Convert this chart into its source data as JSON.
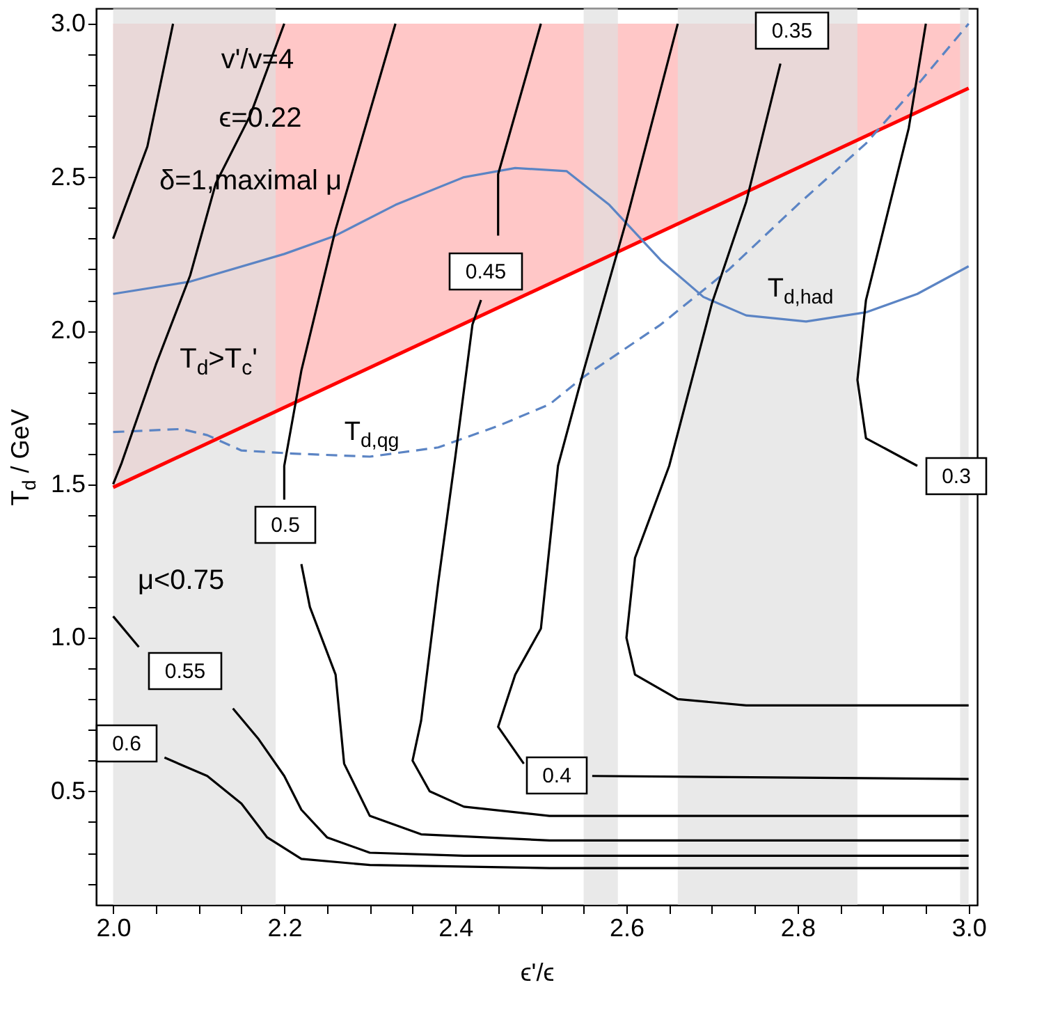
{
  "chart_data": {
    "type": "line",
    "xlabel": "ϵ'/ϵ",
    "ylabel": "T$_{d}$ / GeV",
    "xlim": [
      1.98,
      3.01
    ],
    "ylim": [
      0.13,
      3.05
    ],
    "xticks": [
      {
        "value": 2,
        "label": "2.0"
      },
      {
        "value": 2.05,
        "label": null
      },
      {
        "value": 2.1,
        "label": null
      },
      {
        "value": 2.15,
        "label": null
      },
      {
        "value": 2.2,
        "label": "2.2"
      },
      {
        "value": 2.25,
        "label": null
      },
      {
        "value": 2.3,
        "label": null
      },
      {
        "value": 2.35,
        "label": null
      },
      {
        "value": 2.4,
        "label": "2.4"
      },
      {
        "value": 2.45,
        "label": null
      },
      {
        "value": 2.5,
        "label": null
      },
      {
        "value": 2.55,
        "label": null
      },
      {
        "value": 2.6,
        "label": "2.6"
      },
      {
        "value": 2.65,
        "label": null
      },
      {
        "value": 2.7,
        "label": null
      },
      {
        "value": 2.75,
        "label": null
      },
      {
        "value": 2.8,
        "label": "2.8"
      },
      {
        "value": 2.85,
        "label": null
      },
      {
        "value": 2.9,
        "label": null
      },
      {
        "value": 2.95,
        "label": null
      },
      {
        "value": 3,
        "label": "3.0"
      }
    ],
    "yticks": [
      {
        "value": 0.2,
        "label": null
      },
      {
        "value": 0.3,
        "label": null
      },
      {
        "value": 0.4,
        "label": null
      },
      {
        "value": 0.5,
        "label": "0.5"
      },
      {
        "value": 0.6,
        "label": null
      },
      {
        "value": 0.7,
        "label": null
      },
      {
        "value": 0.8,
        "label": null
      },
      {
        "value": 0.9,
        "label": null
      },
      {
        "value": 1,
        "label": "1.0"
      },
      {
        "value": 1.1,
        "label": null
      },
      {
        "value": 1.2,
        "label": null
      },
      {
        "value": 1.3,
        "label": null
      },
      {
        "value": 1.4,
        "label": null
      },
      {
        "value": 1.5,
        "label": "1.5"
      },
      {
        "value": 1.6,
        "label": null
      },
      {
        "value": 1.7,
        "label": null
      },
      {
        "value": 1.8,
        "label": null
      },
      {
        "value": 1.9,
        "label": null
      },
      {
        "value": 2,
        "label": "2.0"
      },
      {
        "value": 2.1,
        "label": null
      },
      {
        "value": 2.2,
        "label": null
      },
      {
        "value": 2.3,
        "label": null
      },
      {
        "value": 2.4,
        "label": null
      },
      {
        "value": 2.5,
        "label": "2.5"
      },
      {
        "value": 2.6,
        "label": null
      },
      {
        "value": 2.7,
        "label": null
      },
      {
        "value": 2.8,
        "label": null
      },
      {
        "value": 2.9,
        "label": null
      },
      {
        "value": 3,
        "label": "3.0"
      }
    ],
    "bands": [
      {
        "axis": "x",
        "from": 2.0,
        "to": 2.19,
        "color": "#e0e0e0"
      },
      {
        "axis": "x",
        "from": 2.55,
        "to": 2.59,
        "color": "#e0e0e0"
      },
      {
        "axis": "x",
        "from": 2.66,
        "to": 2.87,
        "color": "#e0e0e0"
      },
      {
        "axis": "x",
        "from": 2.99,
        "to": 3.0,
        "color": "#e0e0e0"
      }
    ],
    "series": [
      {
        "color": "#ff0000",
        "x": [
          2.0,
          3.0
        ],
        "values": [
          1.49,
          2.79
        ],
        "lower": [
          1.49,
          2.79
        ],
        "upper": [
          3.0,
          3.0
        ]
      },
      {
        "color": "#5b84c4",
        "line_style": "solid",
        "x": [
          2.0,
          2.09,
          2.2,
          2.26,
          2.33,
          2.41,
          2.47,
          2.53,
          2.58,
          2.64,
          2.69,
          2.74,
          2.81,
          2.88,
          2.94,
          3.0
        ],
        "values": [
          2.12,
          2.16,
          2.25,
          2.31,
          2.41,
          2.5,
          2.53,
          2.52,
          2.41,
          2.23,
          2.11,
          2.05,
          2.03,
          2.06,
          2.12,
          2.21
        ]
      },
      {
        "color": "#5b84c4",
        "line_style": "dashed",
        "x": [
          2.0,
          2.08,
          2.11,
          2.15,
          2.21,
          2.3,
          2.38,
          2.45,
          2.51,
          2.55,
          2.64,
          2.72,
          2.8,
          2.88,
          2.94,
          3.0
        ],
        "values": [
          1.67,
          1.68,
          1.66,
          1.61,
          1.6,
          1.59,
          1.62,
          1.69,
          1.76,
          1.85,
          2.02,
          2.2,
          2.41,
          2.61,
          2.8,
          3.0
        ]
      },
      {
        "color": "#000000",
        "x": [
          2.07,
          2.04,
          2.0
        ],
        "values": [
          3.0,
          2.6,
          2.3
        ]
      },
      {
        "color": "#000000",
        "x": [
          2.2,
          2.16,
          2.12,
          2.09,
          2.05,
          2.01,
          2.0
        ],
        "values": [
          3.0,
          2.7,
          2.48,
          2.18,
          1.89,
          1.57,
          1.5
        ]
      },
      {
        "color": "#000000",
        "x": [
          2.33,
          2.26,
          2.22,
          2.2,
          2.2
        ],
        "values": [
          3.0,
          2.33,
          1.87,
          1.56,
          1.45
        ]
      },
      {
        "color": "#000000",
        "x": [
          2.22,
          2.23,
          2.26,
          2.27,
          2.3,
          2.36,
          2.51,
          3.0
        ],
        "values": [
          1.24,
          1.1,
          0.88,
          0.59,
          0.42,
          0.36,
          0.34,
          0.34
        ]
      },
      {
        "color": "#000000",
        "x": [
          2.5,
          2.45,
          2.45
        ],
        "values": [
          3.0,
          2.51,
          2.31
        ]
      },
      {
        "color": "#000000",
        "x": [
          2.43,
          2.42,
          2.4,
          2.38,
          2.36,
          2.35,
          2.37,
          2.41,
          2.51,
          3.0
        ],
        "values": [
          2.1,
          2.02,
          1.59,
          1.18,
          0.73,
          0.6,
          0.5,
          0.45,
          0.42,
          0.42
        ]
      },
      {
        "color": "#000000",
        "x": [
          2.66,
          2.6,
          2.55,
          2.52,
          2.5,
          2.47,
          2.45,
          2.48
        ],
        "values": [
          3.0,
          2.36,
          1.87,
          1.56,
          1.03,
          0.88,
          0.71,
          0.59
        ]
      },
      {
        "color": "#000000",
        "x": [
          2.56,
          3.0
        ],
        "values": [
          0.55,
          0.54
        ]
      },
      {
        "color": "#000000",
        "x": [
          2.78,
          2.74,
          2.7,
          2.65,
          2.61,
          2.6,
          2.61,
          2.66,
          2.74,
          3.0
        ],
        "values": [
          2.87,
          2.42,
          2.09,
          1.56,
          1.26,
          1.0,
          0.88,
          0.8,
          0.78,
          0.78
        ]
      },
      {
        "color": "#000000",
        "x": [
          2.95,
          2.93,
          2.88,
          2.87,
          2.88,
          2.94
        ],
        "values": [
          3.0,
          2.66,
          2.1,
          1.84,
          1.65,
          1.56
        ]
      },
      {
        "color": "#000000",
        "x": [
          2.06,
          2.11,
          2.15,
          2.18,
          2.22,
          2.3,
          2.51,
          3.0
        ],
        "values": [
          0.61,
          0.55,
          0.46,
          0.35,
          0.28,
          0.26,
          0.25,
          0.25
        ]
      },
      {
        "color": "#000000",
        "x": [
          2.0,
          2.03
        ],
        "values": [
          1.07,
          0.97
        ]
      },
      {
        "color": "#000000",
        "x": [
          2.14,
          2.17,
          2.2,
          2.22,
          2.25,
          2.3,
          2.41,
          3.0
        ],
        "values": [
          0.77,
          0.67,
          0.55,
          0.44,
          0.35,
          0.3,
          0.29,
          0.29
        ]
      }
    ],
    "annotations": [
      "v'/v=4",
      "ϵ=0.22",
      "δ=1,maximal μ",
      "T$_{d}$>T$_{c}$'",
      "T$_{d,qg}$",
      "T$_{d,had}$",
      "μ<0.75",
      "0.6",
      "0.55",
      "0.5",
      "0.45",
      "0.4",
      "0.35",
      "0.3"
    ]
  }
}
